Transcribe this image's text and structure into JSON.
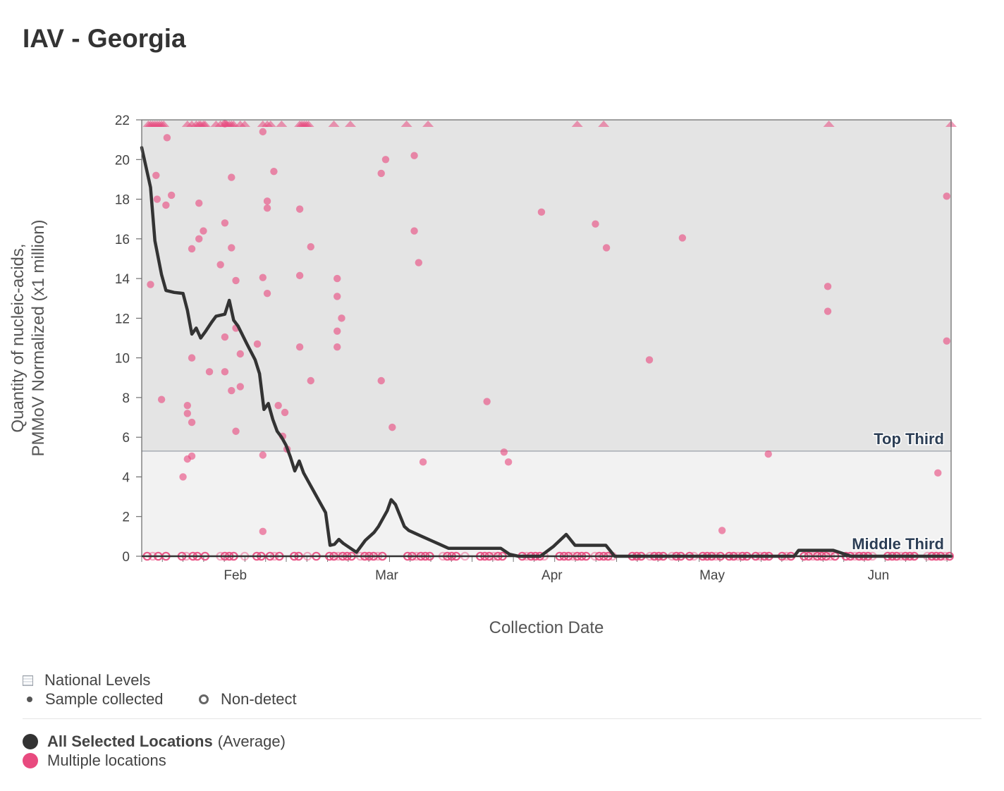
{
  "title": "IAV - Georgia",
  "colors": {
    "average_line": "#333333",
    "locations": "#e84a7f",
    "top_band": "#e4e4e4",
    "middle_band": "#f2f2f2",
    "band_line": "#9aa0a8",
    "band_label": "#2c3e55"
  },
  "legend": {
    "national_levels": "National Levels",
    "sample_collected": "Sample collected",
    "non_detect": "Non-detect",
    "average_bold": "All Selected Locations",
    "average_suffix": "(Average)",
    "multiple_locations": "Multiple locations"
  },
  "chart_data": {
    "type": "line",
    "title": "IAV - Georgia",
    "xlabel": "Collection Date",
    "ylabel": "Quantity of nucleic-acids, PMMoV Normalized (x1 million)",
    "ylim": [
      0,
      22
    ],
    "yticks": [
      0,
      2,
      4,
      6,
      8,
      10,
      12,
      14,
      16,
      18,
      20,
      22
    ],
    "x_range_days": [
      0,
      147
    ],
    "x_ticks": [
      {
        "label": "Feb",
        "day": 17
      },
      {
        "label": "Mar",
        "day": 44.5
      },
      {
        "label": "Apr",
        "day": 74.5
      },
      {
        "label": "May",
        "day": 103.6
      },
      {
        "label": "Jun",
        "day": 133.8
      }
    ],
    "bands": [
      {
        "label": "Top Third",
        "from": 5.3,
        "to": 22
      },
      {
        "label": "Middle Third",
        "from": 0,
        "to": 5.3
      }
    ],
    "series": [
      {
        "name": "All Selected Locations (Average)",
        "points": [
          [
            0,
            20.6
          ],
          [
            1.6,
            18.6
          ],
          [
            2.4,
            15.9
          ],
          [
            3.6,
            14.2
          ],
          [
            4.4,
            13.4
          ],
          [
            5.9,
            13.3
          ],
          [
            7.5,
            13.25
          ],
          [
            8.3,
            12.4
          ],
          [
            9.1,
            11.2
          ],
          [
            9.9,
            11.5
          ],
          [
            10.7,
            11.0
          ],
          [
            11.5,
            11.3
          ],
          [
            12.7,
            11.8
          ],
          [
            13.5,
            12.1
          ],
          [
            15.1,
            12.2
          ],
          [
            15.9,
            12.9
          ],
          [
            16.7,
            11.9
          ],
          [
            17.5,
            11.6
          ],
          [
            19.1,
            10.7
          ],
          [
            20.6,
            9.9
          ],
          [
            21.4,
            9.2
          ],
          [
            22.2,
            7.4
          ],
          [
            23.0,
            7.7
          ],
          [
            23.8,
            6.9
          ],
          [
            24.6,
            6.3
          ],
          [
            25.4,
            6.0
          ],
          [
            26.2,
            5.6
          ],
          [
            27.0,
            5.0
          ],
          [
            27.8,
            4.3
          ],
          [
            28.6,
            4.8
          ],
          [
            29.4,
            4.2
          ],
          [
            30.2,
            3.8
          ],
          [
            31.8,
            3.0
          ],
          [
            33.4,
            2.2
          ],
          [
            34.2,
            0.55
          ],
          [
            35.0,
            0.6
          ],
          [
            35.8,
            0.85
          ],
          [
            36.6,
            0.65
          ],
          [
            38.2,
            0.35
          ],
          [
            39.0,
            0.2
          ],
          [
            40.6,
            0.8
          ],
          [
            42.2,
            1.2
          ],
          [
            43.0,
            1.5
          ],
          [
            44.6,
            2.3
          ],
          [
            45.3,
            2.85
          ],
          [
            46.1,
            2.6
          ],
          [
            47.7,
            1.5
          ],
          [
            48.5,
            1.3
          ],
          [
            50.9,
            1.0
          ],
          [
            52.5,
            0.8
          ],
          [
            54.1,
            0.6
          ],
          [
            55.7,
            0.4
          ],
          [
            58.9,
            0.4
          ],
          [
            65.2,
            0.4
          ],
          [
            66.8,
            0.1
          ],
          [
            68.4,
            0.0
          ],
          [
            72.4,
            0.0
          ],
          [
            74.8,
            0.5
          ],
          [
            77.1,
            1.1
          ],
          [
            78.7,
            0.55
          ],
          [
            84.3,
            0.55
          ],
          [
            85.9,
            0.0
          ],
          [
            118.5,
            0.0
          ],
          [
            119.3,
            0.3
          ],
          [
            125.6,
            0.3
          ],
          [
            127.2,
            0.15
          ],
          [
            128.8,
            0.0
          ],
          [
            147,
            0.0
          ]
        ]
      }
    ],
    "samples": [
      [
        1.6,
        13.7
      ],
      [
        2.6,
        19.2
      ],
      [
        2.8,
        18.0
      ],
      [
        3.6,
        7.9
      ],
      [
        4.6,
        21.1
      ],
      [
        4.4,
        17.7
      ],
      [
        5.4,
        18.2
      ],
      [
        7.5,
        4.0
      ],
      [
        8.3,
        7.6
      ],
      [
        8.3,
        7.2
      ],
      [
        8.3,
        4.9
      ],
      [
        9.1,
        5.05
      ],
      [
        9.1,
        6.75
      ],
      [
        9.1,
        10.0
      ],
      [
        9.1,
        15.5
      ],
      [
        10.4,
        17.8
      ],
      [
        10.4,
        16.0
      ],
      [
        11.2,
        16.4
      ],
      [
        12.3,
        9.3
      ],
      [
        14.3,
        14.7
      ],
      [
        15.1,
        16.8
      ],
      [
        15.1,
        11.05
      ],
      [
        15.1,
        9.3
      ],
      [
        16.3,
        19.1
      ],
      [
        16.3,
        15.55
      ],
      [
        16.3,
        8.35
      ],
      [
        17.1,
        13.9
      ],
      [
        17.1,
        11.5
      ],
      [
        17.1,
        6.3
      ],
      [
        17.9,
        10.2
      ],
      [
        17.9,
        8.55
      ],
      [
        15.1,
        21.8
      ],
      [
        21.0,
        10.7
      ],
      [
        22.0,
        21.4
      ],
      [
        22.0,
        14.05
      ],
      [
        22.0,
        5.1
      ],
      [
        22.0,
        1.25
      ],
      [
        22.8,
        17.9
      ],
      [
        22.8,
        17.55
      ],
      [
        22.8,
        13.25
      ],
      [
        24.0,
        19.4
      ],
      [
        24.8,
        7.6
      ],
      [
        25.6,
        6.05
      ],
      [
        26.0,
        7.25
      ],
      [
        26.4,
        5.4
      ],
      [
        28.7,
        17.5
      ],
      [
        28.7,
        14.15
      ],
      [
        28.7,
        10.55
      ],
      [
        30.7,
        15.6
      ],
      [
        30.7,
        8.85
      ],
      [
        35.5,
        14.0
      ],
      [
        35.5,
        13.1
      ],
      [
        35.5,
        11.35
      ],
      [
        35.5,
        10.55
      ],
      [
        36.3,
        12.0
      ],
      [
        43.5,
        19.3
      ],
      [
        43.5,
        8.85
      ],
      [
        44.3,
        20.0
      ],
      [
        45.5,
        6.5
      ],
      [
        49.5,
        20.2
      ],
      [
        49.5,
        16.4
      ],
      [
        50.3,
        14.8
      ],
      [
        51.1,
        4.75
      ],
      [
        62.7,
        7.8
      ],
      [
        65.8,
        5.25
      ],
      [
        66.6,
        4.75
      ],
      [
        72.6,
        17.35
      ],
      [
        82.4,
        16.75
      ],
      [
        84.4,
        15.55
      ],
      [
        92.2,
        9.9
      ],
      [
        98.2,
        16.05
      ],
      [
        105.4,
        1.3
      ],
      [
        113.8,
        5.15
      ],
      [
        124.6,
        13.6
      ],
      [
        124.6,
        12.35
      ],
      [
        144.6,
        4.2
      ],
      [
        146.2,
        18.15
      ],
      [
        146.2,
        10.85
      ]
    ],
    "above_range_days": [
      1.2,
      1.6,
      2.0,
      2.4,
      2.8,
      3.2,
      3.6,
      4.0,
      8.3,
      9.1,
      9.9,
      10.4,
      10.7,
      11.2,
      11.5,
      13.5,
      14.3,
      15.1,
      15.5,
      15.9,
      16.3,
      16.7,
      17.9,
      18.7,
      22.0,
      22.8,
      23.4,
      25.4,
      28.7,
      29.1,
      29.5,
      29.9,
      30.3,
      34.9,
      37.9,
      48.1,
      52.0,
      79.1,
      83.9,
      124.8,
      147.0
    ],
    "non_detect_days": [
      1.0,
      2.0,
      3.0,
      4.4,
      7.3,
      8.1,
      9.3,
      10.1,
      11.5,
      14.3,
      15.1,
      15.9,
      16.7,
      18.7,
      20.9,
      21.7,
      23.3,
      24.1,
      25.0,
      27.7,
      28.5,
      30.1,
      31.7,
      34.1,
      34.9,
      35.7,
      36.5,
      37.3,
      38.1,
      39.7,
      40.5,
      41.3,
      42.1,
      42.9,
      43.7,
      48.3,
      49.1,
      49.9,
      50.7,
      51.5,
      52.3,
      54.7,
      55.5,
      56.3,
      57.1,
      58.7,
      61.5,
      62.3,
      63.1,
      63.9,
      64.7,
      65.5,
      69.1,
      69.9,
      70.7,
      71.5,
      72.3,
      73.1,
      75.9,
      76.7,
      77.5,
      78.3,
      79.1,
      79.9,
      80.7,
      82.3,
      83.1,
      83.9,
      84.7,
      85.5,
      89.1,
      89.9,
      90.7,
      92.3,
      93.1,
      93.9,
      94.7,
      96.3,
      97.1,
      97.9,
      99.5,
      100.3,
      101.9,
      102.7,
      103.5,
      104.3,
      105.1,
      106.7,
      107.5,
      108.3,
      109.1,
      109.9,
      111.5,
      112.3,
      113.1,
      113.9,
      116.3,
      117.1,
      117.9,
      120.3,
      121.1,
      121.9,
      122.7,
      123.5,
      124.3,
      125.1,
      125.9,
      127.9,
      128.7,
      129.5,
      130.3,
      131.1,
      131.9,
      132.7,
      135.5,
      136.3,
      137.1,
      137.9,
      138.7,
      139.5,
      140.3,
      142.7,
      143.5,
      144.3,
      145.1,
      145.9,
      146.7
    ]
  }
}
